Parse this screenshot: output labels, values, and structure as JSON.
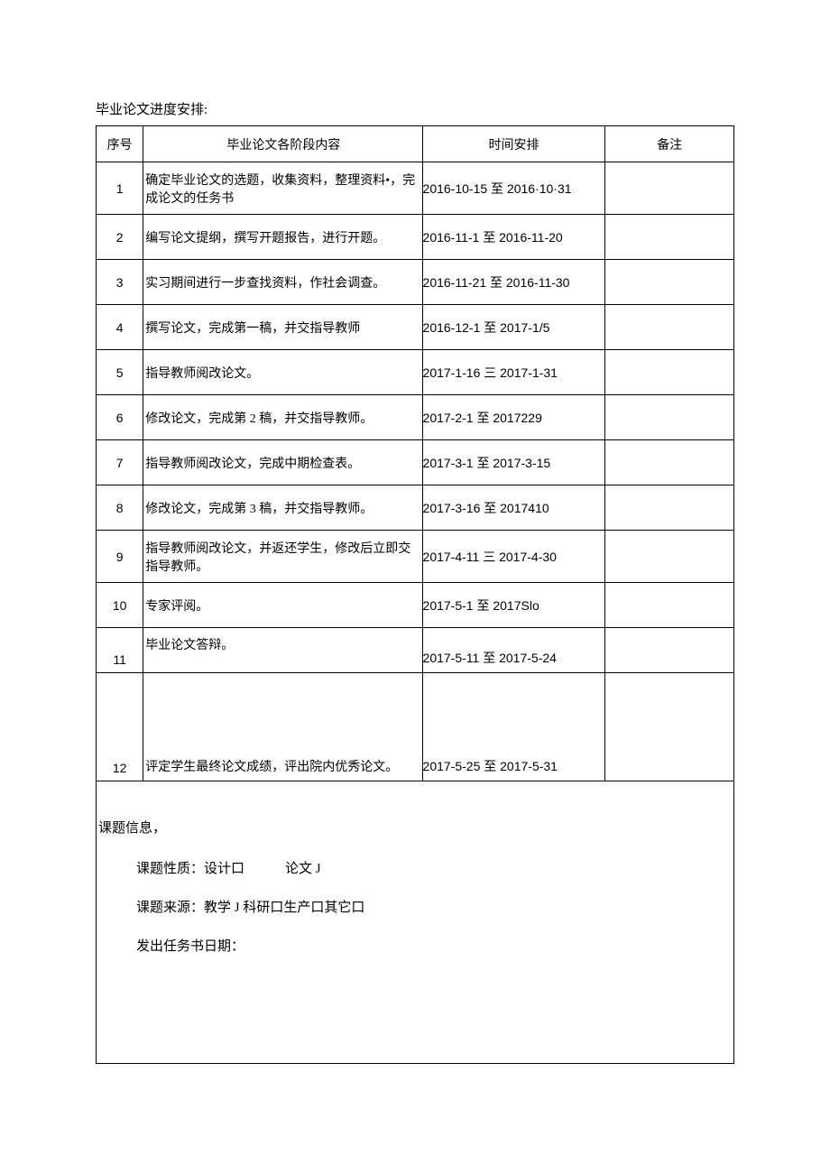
{
  "title": "毕业论文进度安排:",
  "headers": {
    "seq": "序号",
    "content": "毕业论文各阶段内容",
    "time": "时间安排",
    "note": "备注"
  },
  "rows": [
    {
      "seq": "1",
      "content": "确定毕业论文的选题，收集资料，整理资料•，完成论文的任务书",
      "time": "2016-10-15 至 2016·10·31",
      "note": ""
    },
    {
      "seq": "2",
      "content": "编写论文提纲，撰写开题报告，进行开题。",
      "time": "2016-11-1 至 2016-11-20",
      "note": ""
    },
    {
      "seq": "3",
      "content": "实习期间进行一步查找资料，作社会调查。",
      "time": "2016-11-21 至 2016-11-30",
      "note": ""
    },
    {
      "seq": "4",
      "content": "撰写论文，完成第一稿，并交指导教师",
      "time": "2016-12-1 至 2017-1/5",
      "note": ""
    },
    {
      "seq": "5",
      "content": "指导教师阅改论文。",
      "time": "2017-1-16 三 2017-1-31",
      "note": ""
    },
    {
      "seq": "6",
      "content": "修改论文，完成第 2 稿，并交指导教师。",
      "time": "2017-2-1 至 2017229",
      "note": ""
    },
    {
      "seq": "7",
      "content": "指导教师阅改论文，完成中期检查表。",
      "time": "2017-3-1 至 2017-3-15",
      "note": ""
    },
    {
      "seq": "8",
      "content": "修改论文，完成第 3 稿，并交指导教师。",
      "time": "2017-3-16 至 2017410",
      "note": ""
    },
    {
      "seq": "9",
      "content": "指导教师阅改论文，并返还学生，修改后立即交指导教师。",
      "time": "2017-4-11 三 2017-4-30",
      "note": ""
    },
    {
      "seq": "10",
      "content": "专家评阅。",
      "time": "2017-5-1 至 2017Slo",
      "note": ""
    },
    {
      "seq": "11",
      "content": "毕业论文答辩。",
      "time": "2017-5-11 至 2017-5-24",
      "note": ""
    },
    {
      "seq": "12",
      "content": "评定学生最终论文成绩，评出院内优秀论文。",
      "time": "2017-5-25 至 2017-5-31",
      "note": ""
    }
  ],
  "info": {
    "title": "课题信息，",
    "line1": "课题性质：设计口　　　论文 J",
    "line2": "课题来源：教学 J 科研口生产口其它口",
    "line3": "发出任务书日期："
  }
}
